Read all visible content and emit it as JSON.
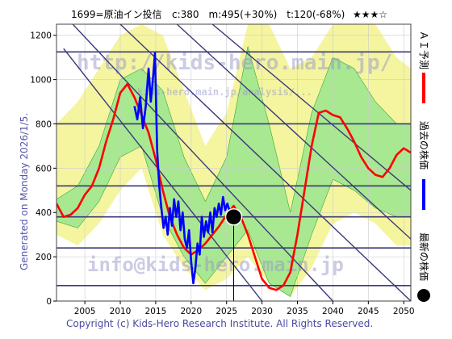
{
  "header": {
    "title": "1699=原油イン投信",
    "stats": "c:380　m:495(+30%)　t:120(-68%)",
    "stars": "★★★☆"
  },
  "legend": {
    "ai_forecast": "ＡＩ予測",
    "past_price": "過去の株価",
    "latest_price": "最新の株価",
    "ai_color": "#ff0000",
    "past_color": "#0000ff",
    "latest_color": "#000000"
  },
  "generated_label": "Generated on Monday 2026/1/5.",
  "copyright": "Copyright (c) Kids-Hero Research Institute. All Rights Reserved.",
  "watermark": {
    "url": "http://kids-hero.main.jp/",
    "url_small": "kids-hero.main.jp/analysis/...",
    "email": "info@kids-hero.main.jp"
  },
  "chart_data": {
    "type": "line",
    "xlim": [
      2001,
      2051
    ],
    "ylim": [
      0,
      1250
    ],
    "x_ticks": [
      "2005",
      "2010",
      "2015",
      "2020",
      "2025",
      "2030",
      "2035",
      "2040",
      "2045",
      "2050"
    ],
    "y_ticks": [
      "0",
      "200",
      "400",
      "600",
      "800",
      "1000",
      "1200"
    ],
    "horizontal_levels": [
      70,
      240,
      380,
      520,
      800,
      1125
    ],
    "diagonal_trend_lines": [
      {
        "from": [
          2003,
          1260
        ],
        "to": [
          2040,
          0
        ]
      },
      {
        "from": [
          2002,
          1140
        ],
        "to": [
          2030,
          0
        ]
      },
      {
        "from": [
          2010,
          1250
        ],
        "to": [
          2051,
          0
        ]
      },
      {
        "from": [
          2018,
          1250
        ],
        "to": [
          2051,
          280
        ]
      },
      {
        "from": [
          2023,
          1250
        ],
        "to": [
          2051,
          500
        ]
      }
    ],
    "past_price": {
      "color": "#0000ff",
      "x": [
        2012.0,
        2012.4,
        2012.8,
        2013.2,
        2013.6,
        2014.0,
        2014.3,
        2014.6,
        2014.9,
        2015.2,
        2015.5,
        2015.8,
        2016.1,
        2016.4,
        2016.7,
        2017.0,
        2017.3,
        2017.6,
        2017.9,
        2018.2,
        2018.5,
        2018.8,
        2019.1,
        2019.4,
        2019.7,
        2020.0,
        2020.3,
        2020.6,
        2020.9,
        2021.2,
        2021.5,
        2021.8,
        2022.1,
        2022.4,
        2022.7,
        2023.0,
        2023.3,
        2023.6,
        2023.9,
        2024.2,
        2024.5,
        2024.8,
        2025.1,
        2025.5,
        2025.9
      ],
      "y": [
        880,
        820,
        920,
        780,
        880,
        1050,
        900,
        1000,
        1120,
        680,
        520,
        420,
        330,
        380,
        300,
        420,
        340,
        460,
        380,
        450,
        320,
        400,
        280,
        240,
        320,
        180,
        80,
        150,
        260,
        210,
        380,
        290,
        360,
        310,
        400,
        310,
        420,
        380,
        440,
        390,
        470,
        410,
        440,
        400,
        380
      ]
    },
    "ai_forecast": {
      "color": "#ff0000",
      "x": [
        2001.0,
        2002.0,
        2003.0,
        2004.0,
        2005.0,
        2006.0,
        2007.0,
        2008.0,
        2009.0,
        2010.0,
        2011.0,
        2012.0,
        2013.0,
        2014.0,
        2015.0,
        2016.0,
        2017.0,
        2018.0,
        2019.0,
        2020.0,
        2021.0,
        2022.0,
        2023.0,
        2024.0,
        2025.0,
        2026.0,
        2027.0,
        2028.0,
        2029.0,
        2030.0,
        2031.0,
        2032.0,
        2033.0,
        2034.0,
        2035.0,
        2036.0,
        2037.0,
        2038.0,
        2039.0,
        2040.0,
        2041.0,
        2042.0,
        2043.0,
        2044.0,
        2045.0,
        2046.0,
        2047.0,
        2048.0,
        2049.0,
        2050.0,
        2051.0
      ],
      "y": [
        440,
        380,
        390,
        420,
        480,
        520,
        600,
        720,
        820,
        940,
        980,
        920,
        840,
        760,
        640,
        500,
        380,
        300,
        240,
        210,
        230,
        260,
        300,
        340,
        390,
        430,
        380,
        300,
        200,
        100,
        60,
        50,
        70,
        130,
        300,
        500,
        700,
        850,
        860,
        840,
        830,
        780,
        720,
        650,
        600,
        570,
        560,
        600,
        660,
        690,
        670
      ]
    },
    "latest_price": {
      "x": 2026.0,
      "y": 380
    },
    "bands": [
      {
        "name": "yellow",
        "x": [
          2001,
          2004,
          2007,
          2010,
          2013,
          2016,
          2019,
          2022,
          2025,
          2028,
          2031,
          2034,
          2037,
          2040,
          2043,
          2046,
          2049,
          2051
        ],
        "lo": [
          300,
          250,
          350,
          500,
          600,
          300,
          150,
          50,
          100,
          200,
          80,
          20,
          150,
          350,
          400,
          350,
          250,
          250
        ],
        "hi": [
          800,
          900,
          1050,
          1200,
          1250,
          1200,
          950,
          700,
          850,
          1250,
          1250,
          1050,
          1100,
          1250,
          1250,
          1250,
          1100,
          1050
        ]
      },
      {
        "name": "green",
        "x": [
          2001,
          2004,
          2007,
          2010,
          2013,
          2016,
          2019,
          2022,
          2025,
          2028,
          2031,
          2034,
          2037,
          2040,
          2043,
          2046,
          2049,
          2051
        ],
        "lo": [
          360,
          330,
          450,
          650,
          700,
          380,
          200,
          80,
          200,
          320,
          80,
          20,
          300,
          550,
          500,
          420,
          380,
          380
        ],
        "hi": [
          460,
          520,
          700,
          1000,
          1050,
          950,
          650,
          450,
          650,
          1150,
          800,
          400,
          850,
          1100,
          1050,
          900,
          800,
          800
        ]
      }
    ]
  }
}
